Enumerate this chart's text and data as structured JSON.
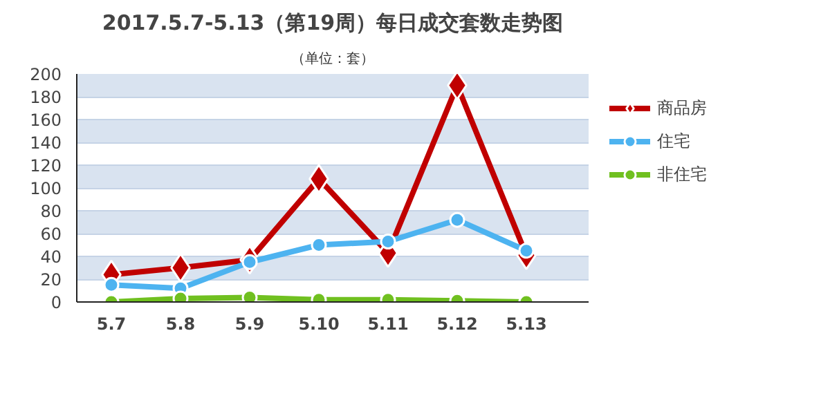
{
  "chart_data": {
    "type": "line",
    "title": "2017.5.7-5.13（第19周）每日成交套数走势图",
    "subtitle": "（单位：套）",
    "categories": [
      "5.7",
      "5.8",
      "5.9",
      "5.10",
      "5.11",
      "5.12",
      "5.13"
    ],
    "series": [
      {
        "name": "商品房",
        "color": "#c00000",
        "marker": "diamond",
        "values": [
          24,
          30,
          37,
          108,
          43,
          190,
          41
        ]
      },
      {
        "name": "住宅",
        "color": "#4db3f0",
        "marker": "circle",
        "values": [
          15,
          12,
          35,
          50,
          53,
          72,
          45
        ]
      },
      {
        "name": "非住宅",
        "color": "#70c020",
        "marker": "circle",
        "values": [
          0,
          3,
          4,
          2,
          2,
          1,
          0
        ]
      }
    ],
    "ylim": [
      0,
      200
    ],
    "yticks": [
      0,
      20,
      40,
      60,
      80,
      100,
      120,
      140,
      160,
      180,
      200
    ],
    "grid": "y",
    "legend": "right",
    "line_style": "solid"
  }
}
